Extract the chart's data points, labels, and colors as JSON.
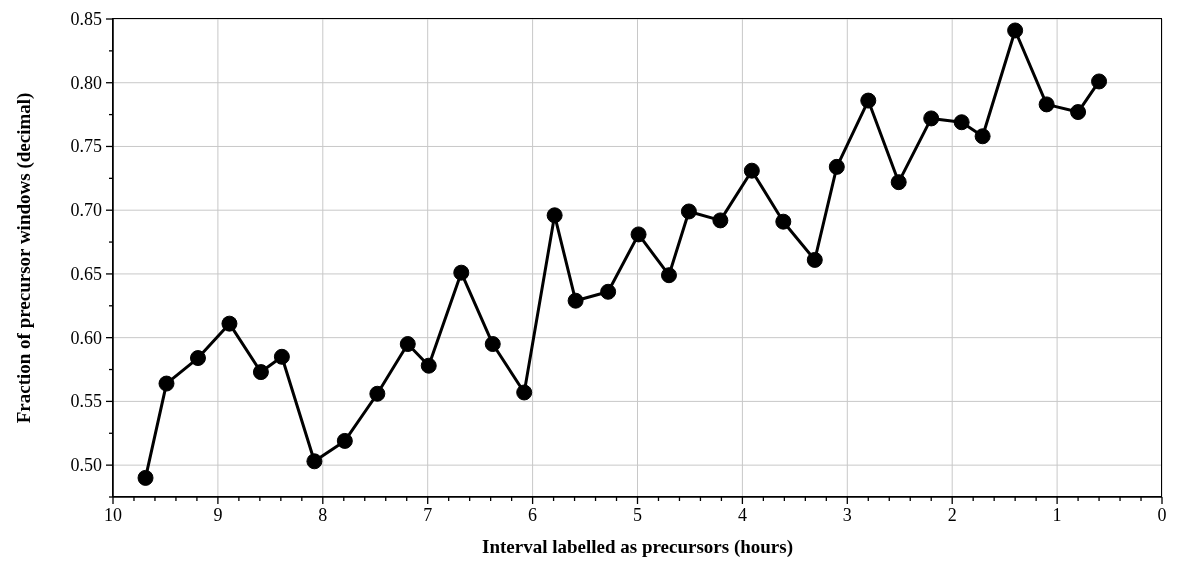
{
  "chart_data": {
    "type": "line",
    "xlabel": "Interval labelled as precursors (hours)",
    "ylabel": "Fraction of precursor windows (decimal)",
    "x": [
      9.69,
      9.49,
      9.19,
      8.89,
      8.59,
      8.39,
      8.08,
      7.79,
      7.48,
      7.19,
      6.99,
      6.68,
      6.38,
      6.08,
      5.79,
      5.59,
      5.28,
      4.99,
      4.7,
      4.51,
      4.21,
      3.91,
      3.61,
      3.31,
      3.1,
      2.8,
      2.51,
      2.2,
      1.91,
      1.71,
      1.4,
      1.1,
      0.8,
      0.6
    ],
    "series": [
      {
        "color": "#000000",
        "values": [
          0.49,
          0.564,
          0.584,
          0.611,
          0.573,
          0.585,
          0.503,
          0.519,
          0.556,
          0.595,
          0.578,
          0.651,
          0.595,
          0.557,
          0.696,
          0.629,
          0.636,
          0.681,
          0.649,
          0.699,
          0.692,
          0.731,
          0.691,
          0.661,
          0.734,
          0.786,
          0.722,
          0.772,
          0.769,
          0.758,
          0.841,
          0.783,
          0.777,
          0.801
        ]
      }
    ],
    "xlim": [
      10,
      0
    ],
    "xticks": [
      10,
      {
        "value": 9.8,
        "label": null
      },
      {
        "value": 9.6,
        "label": null
      },
      {
        "value": 9.4,
        "label": null
      },
      {
        "value": 9.2,
        "label": null
      },
      9,
      {
        "value": 8.8,
        "label": null
      },
      {
        "value": 8.6,
        "label": null
      },
      {
        "value": 8.4,
        "label": null
      },
      {
        "value": 8.2,
        "label": null
      },
      8,
      {
        "value": 7.8,
        "label": null
      },
      {
        "value": 7.6,
        "label": null
      },
      {
        "value": 7.4,
        "label": null
      },
      {
        "value": 7.2,
        "label": null
      },
      7,
      {
        "value": 6.8,
        "label": null
      },
      {
        "value": 6.6,
        "label": null
      },
      {
        "value": 6.4,
        "label": null
      },
      {
        "value": 6.2,
        "label": null
      },
      6,
      {
        "value": 5.8,
        "label": null
      },
      {
        "value": 5.6,
        "label": null
      },
      {
        "value": 5.4,
        "label": null
      },
      {
        "value": 5.2,
        "label": null
      },
      5,
      {
        "value": 4.8,
        "label": null
      },
      {
        "value": 4.6,
        "label": null
      },
      {
        "value": 4.4,
        "label": null
      },
      {
        "value": 4.2,
        "label": null
      },
      4,
      {
        "value": 3.8,
        "label": null
      },
      {
        "value": 3.6,
        "label": null
      },
      {
        "value": 3.4,
        "label": null
      },
      {
        "value": 3.2,
        "label": null
      },
      3,
      {
        "value": 2.8,
        "label": null
      },
      {
        "value": 2.6,
        "label": null
      },
      {
        "value": 2.4,
        "label": null
      },
      {
        "value": 2.2,
        "label": null
      },
      2,
      {
        "value": 1.8,
        "label": null
      },
      {
        "value": 1.6,
        "label": null
      },
      {
        "value": 1.4,
        "label": null
      },
      {
        "value": 1.2,
        "label": null
      },
      1,
      {
        "value": 0.8,
        "label": null
      },
      {
        "value": 0.6,
        "label": null
      },
      {
        "value": 0.4,
        "label": null
      },
      {
        "value": 0.2,
        "label": null
      },
      0
    ],
    "ylim": [
      0.475,
      0.85
    ],
    "yticks": [
      {
        "value": 0.475,
        "label": null
      },
      {
        "value": 0.5,
        "label": "0.50"
      },
      {
        "value": 0.525,
        "label": null
      },
      {
        "value": 0.55,
        "label": "0.55"
      },
      {
        "value": 0.575,
        "label": null
      },
      {
        "value": 0.6,
        "label": "0.60"
      },
      {
        "value": 0.625,
        "label": null
      },
      {
        "value": 0.65,
        "label": "0.65"
      },
      {
        "value": 0.675,
        "label": null
      },
      {
        "value": 0.7,
        "label": "0.70"
      },
      {
        "value": 0.725,
        "label": null
      },
      {
        "value": 0.75,
        "label": "0.75"
      },
      {
        "value": 0.775,
        "label": null
      },
      {
        "value": 0.8,
        "label": "0.80"
      },
      {
        "value": 0.825,
        "label": null
      },
      {
        "value": 0.85,
        "label": "0.85"
      }
    ],
    "grid": true,
    "marker": "circle",
    "line_style": "solid"
  }
}
